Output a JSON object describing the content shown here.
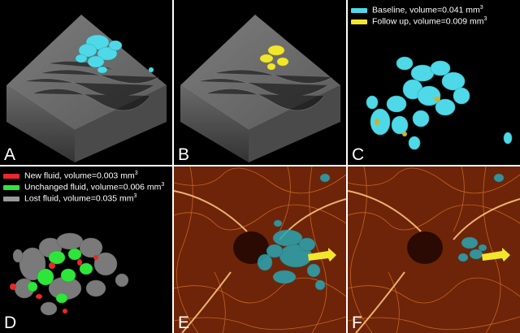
{
  "panels": [
    {
      "id": "A",
      "label": "A"
    },
    {
      "id": "B",
      "label": "B"
    },
    {
      "id": "C",
      "label": "C"
    },
    {
      "id": "D",
      "label": "D"
    },
    {
      "id": "E",
      "label": "E"
    },
    {
      "id": "F",
      "label": "F"
    }
  ],
  "legend_c": [
    {
      "text": "Baseline,  volume=0.041 mm",
      "sup": "3",
      "color": "#4fd9e8"
    },
    {
      "text": "Follow up,  volume=0.009 mm",
      "sup": "3",
      "color": "#f2e62b"
    }
  ],
  "legend_d": [
    {
      "text": "New fluid, volume=0.003 mm",
      "sup": "3",
      "color": "#e8282a"
    },
    {
      "text": "Unchanged fluid, volume=0.006 mm",
      "sup": "3",
      "color": "#2ee63a"
    },
    {
      "text": "Lost fluid, volume=0.035 mm",
      "sup": "3",
      "color": "#9a9a9a"
    }
  ],
  "colors": {
    "fluid_cyan": "#4fd9e8",
    "fluid_yellow": "#f2e62b",
    "new_red": "#e8282a",
    "unchanged_green": "#2ee63a",
    "lost_gray": "#9a9a9a",
    "angio_orange": "#d2691e",
    "arrow_yellow": "#f2e62b",
    "background": "#000000"
  }
}
